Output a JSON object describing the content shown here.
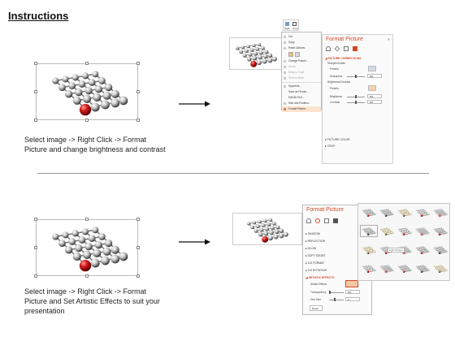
{
  "page": {
    "title": "Instructions"
  },
  "steps": [
    {
      "caption": [
        "Select image -> Right Click -> Format",
        "Picture and change brightness and contrast"
      ]
    },
    {
      "caption": [
        "Select image -> Right Click -> Format",
        "Picture and Set Artistic Effects to suit your",
        "presentation"
      ]
    }
  ],
  "mini_toolbar": {
    "buttons": [
      "Style",
      "Crop"
    ]
  },
  "context_menu": {
    "items": [
      {
        "label": "Cut",
        "state": "normal"
      },
      {
        "label": "Copy",
        "state": "normal"
      },
      {
        "label": "Paste Options:",
        "state": "normal"
      },
      {
        "label": "",
        "state": "paste-icons"
      },
      {
        "label": "Change Picture...",
        "state": "normal"
      },
      {
        "label": "Group",
        "state": "disabled"
      },
      {
        "label": "Bring to Front",
        "state": "disabled"
      },
      {
        "label": "Send to Back",
        "state": "disabled"
      },
      {
        "label": "Hyperlink...",
        "state": "normal"
      },
      {
        "label": "Save as Picture...",
        "state": "normal"
      },
      {
        "label": "Edit Alt Text...",
        "state": "normal"
      },
      {
        "label": "Size and Position...",
        "state": "normal"
      },
      {
        "label": "Format Picture...",
        "state": "highlighted"
      }
    ]
  },
  "format_panel_1": {
    "title": "Format Picture",
    "close": "✕",
    "sections": {
      "picture_corrections": "PICTURE CORRECTIONS",
      "sharpen_soften": "Sharpen/Soften",
      "presets": "Presets",
      "sharpness": "Sharpness",
      "sharpness_value": "0%",
      "brightness_contrast": "Brightness/Contrast",
      "presets2": "Presets",
      "brightness": "Brightness",
      "brightness_value": "0%",
      "contrast": "Contrast",
      "contrast_value": "0%",
      "picture_color": "PICTURE COLOR",
      "crop": "CROP"
    }
  },
  "format_panel_2": {
    "title": "Format Picture",
    "sections": [
      "SHADOW",
      "REFLECTION",
      "GLOW",
      "SOFT EDGES",
      "3-D FORMAT",
      "3-D ROTATION"
    ],
    "artistic": "ARTISTIC EFFECTS",
    "artistic_effects": "Artistic Effects",
    "transparency": "Transparency",
    "transparency_value": "0%",
    "grid_size": "Grid Size",
    "grid_size_value": "4",
    "reset": "Reset"
  },
  "gallery": {
    "tooltip": "Light Screen"
  },
  "colors": {
    "accent": "#d24726",
    "highlight": "#fde3cf"
  }
}
